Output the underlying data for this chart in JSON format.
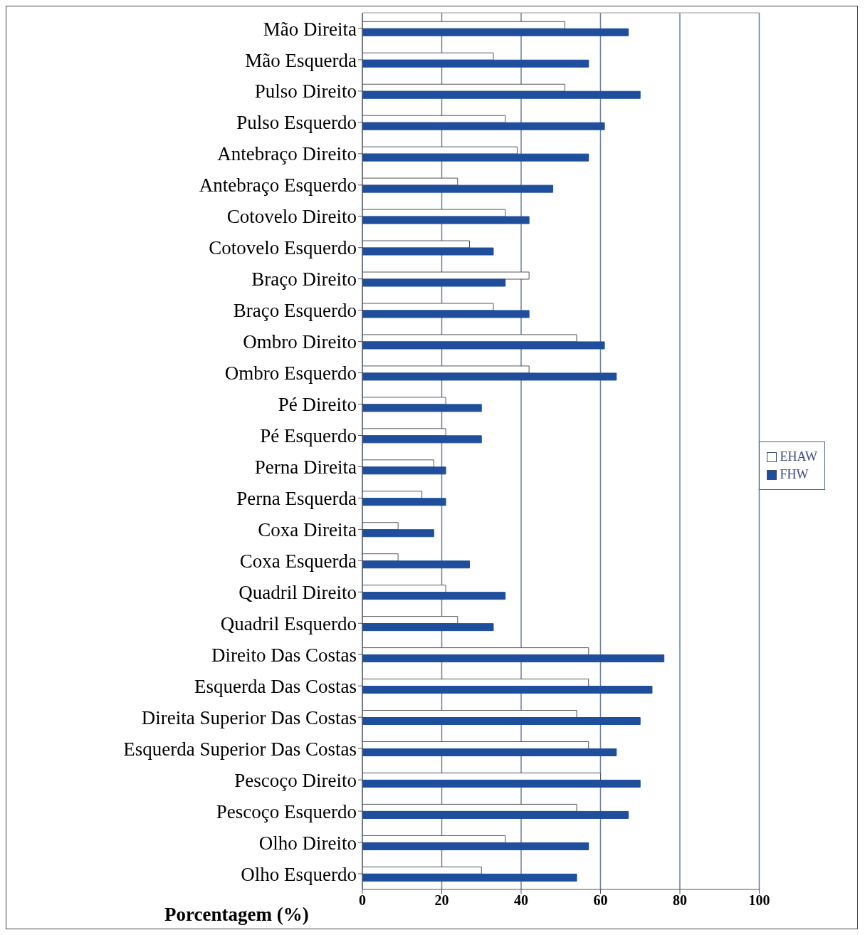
{
  "chart_data": {
    "type": "bar",
    "orientation": "horizontal",
    "xlabel": "Porcentagem (%)",
    "categories": [
      "Mão Direita",
      "Mão Esquerda",
      "Pulso Direito",
      "Pulso Esquerdo",
      "Antebraço Direito",
      "Antebraço Esquerdo",
      "Cotovelo Direito",
      "Cotovelo Esquerdo",
      "Braço Direito",
      "Braço Esquerdo",
      "Ombro Direito",
      "Ombro Esquerdo",
      "Pé Direito",
      "Pé Esquerdo",
      "Perna Direita",
      "Perna Esquerda",
      "Coxa Direita",
      "Coxa Esquerda",
      "Quadril Direito",
      "Quadril Esquerdo",
      "Direito Das Costas",
      "Esquerda Das Costas",
      "Direita Superior Das Costas",
      "Esquerda Superior Das Costas",
      "Pescoço Direito",
      "Pescoço Esquerdo",
      "Olho Direito",
      "Olho Esquerdo"
    ],
    "series": [
      {
        "name": "EHAW",
        "color": "#ffffff",
        "values": [
          51,
          33,
          51,
          36,
          39,
          24,
          36,
          27,
          42,
          33,
          54,
          42,
          21,
          21,
          18,
          15,
          9,
          9,
          21,
          24,
          57,
          57,
          54,
          57,
          60,
          54,
          36,
          30
        ]
      },
      {
        "name": "FHW",
        "color": "#1f4e9c",
        "values": [
          67,
          57,
          70,
          61,
          57,
          48,
          42,
          33,
          36,
          42,
          61,
          64,
          30,
          30,
          21,
          21,
          18,
          27,
          36,
          33,
          76,
          73,
          70,
          64,
          70,
          67,
          57,
          54
        ]
      }
    ],
    "xlim": [
      0,
      100
    ],
    "xticks": [
      0,
      20,
      40,
      60,
      80,
      100
    ],
    "grid": "x",
    "legend": "right"
  }
}
